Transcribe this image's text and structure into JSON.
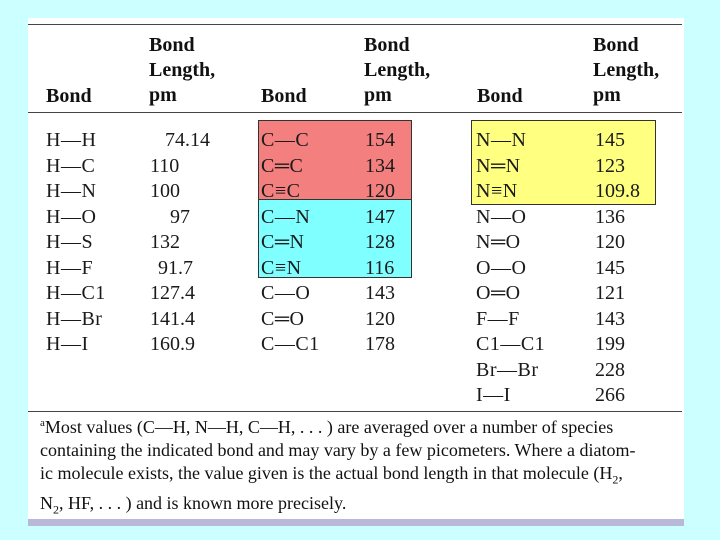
{
  "header": {
    "bond": "Bond",
    "length": "Bond\nLength,\npm"
  },
  "columns": [
    {
      "rows": [
        {
          "bond": "H—H",
          "length": "74.14"
        },
        {
          "bond": "H—C",
          "length": "110"
        },
        {
          "bond": "H—N",
          "length": "100"
        },
        {
          "bond": "H—O",
          "length": "97"
        },
        {
          "bond": "H—S",
          "length": "132"
        },
        {
          "bond": "H—F",
          "length": "91.7"
        },
        {
          "bond": "H—C1",
          "length": "127.4"
        },
        {
          "bond": "H—Br",
          "length": "141.4"
        },
        {
          "bond": "H—I",
          "length": "160.9"
        }
      ]
    },
    {
      "rows": [
        {
          "bond": "C—C",
          "length": "154"
        },
        {
          "bond": "C═C",
          "length": "134"
        },
        {
          "bond": "C≡C",
          "length": "120"
        },
        {
          "bond": "C—N",
          "length": "147"
        },
        {
          "bond": "C═N",
          "length": "128"
        },
        {
          "bond": "C≡N",
          "length": "116"
        },
        {
          "bond": "C—O",
          "length": "143"
        },
        {
          "bond": "C═O",
          "length": "120"
        },
        {
          "bond": "C—C1",
          "length": "178"
        }
      ]
    },
    {
      "rows": [
        {
          "bond": "N—N",
          "length": "145"
        },
        {
          "bond": "N═N",
          "length": "123"
        },
        {
          "bond": "N≡N",
          "length": "109.8"
        },
        {
          "bond": "N—O",
          "length": "136"
        },
        {
          "bond": "N═O",
          "length": "120"
        },
        {
          "bond": "O—O",
          "length": "145"
        },
        {
          "bond": "O═O",
          "length": "121"
        },
        {
          "bond": "F—F",
          "length": "143"
        },
        {
          "bond": "C1—C1",
          "length": "199"
        },
        {
          "bond": "Br—Br",
          "length": "228"
        },
        {
          "bond": "I—I",
          "length": "266"
        }
      ]
    }
  ],
  "footnote": {
    "marker": "a",
    "text_1": "Most values (C—H, N—H, C—H, . . . ) are averaged over a number of species",
    "text_2": "containing the indicated bond and may vary by a few picometers. Where a diatom-",
    "text_3": "ic molecule exists, the value given is the actual bond length in that molecule (H",
    "h2_sub": "2",
    "text_3_end": ",",
    "n2_start": "N",
    "n2_sub": "2",
    "text_4": ", HF, . . . ) and is known more precisely."
  },
  "colors": {
    "background": "#ccffff",
    "highlight_red": "#f47f7f",
    "highlight_cyan": "#7fffff",
    "highlight_yellow": "#ffff80"
  }
}
